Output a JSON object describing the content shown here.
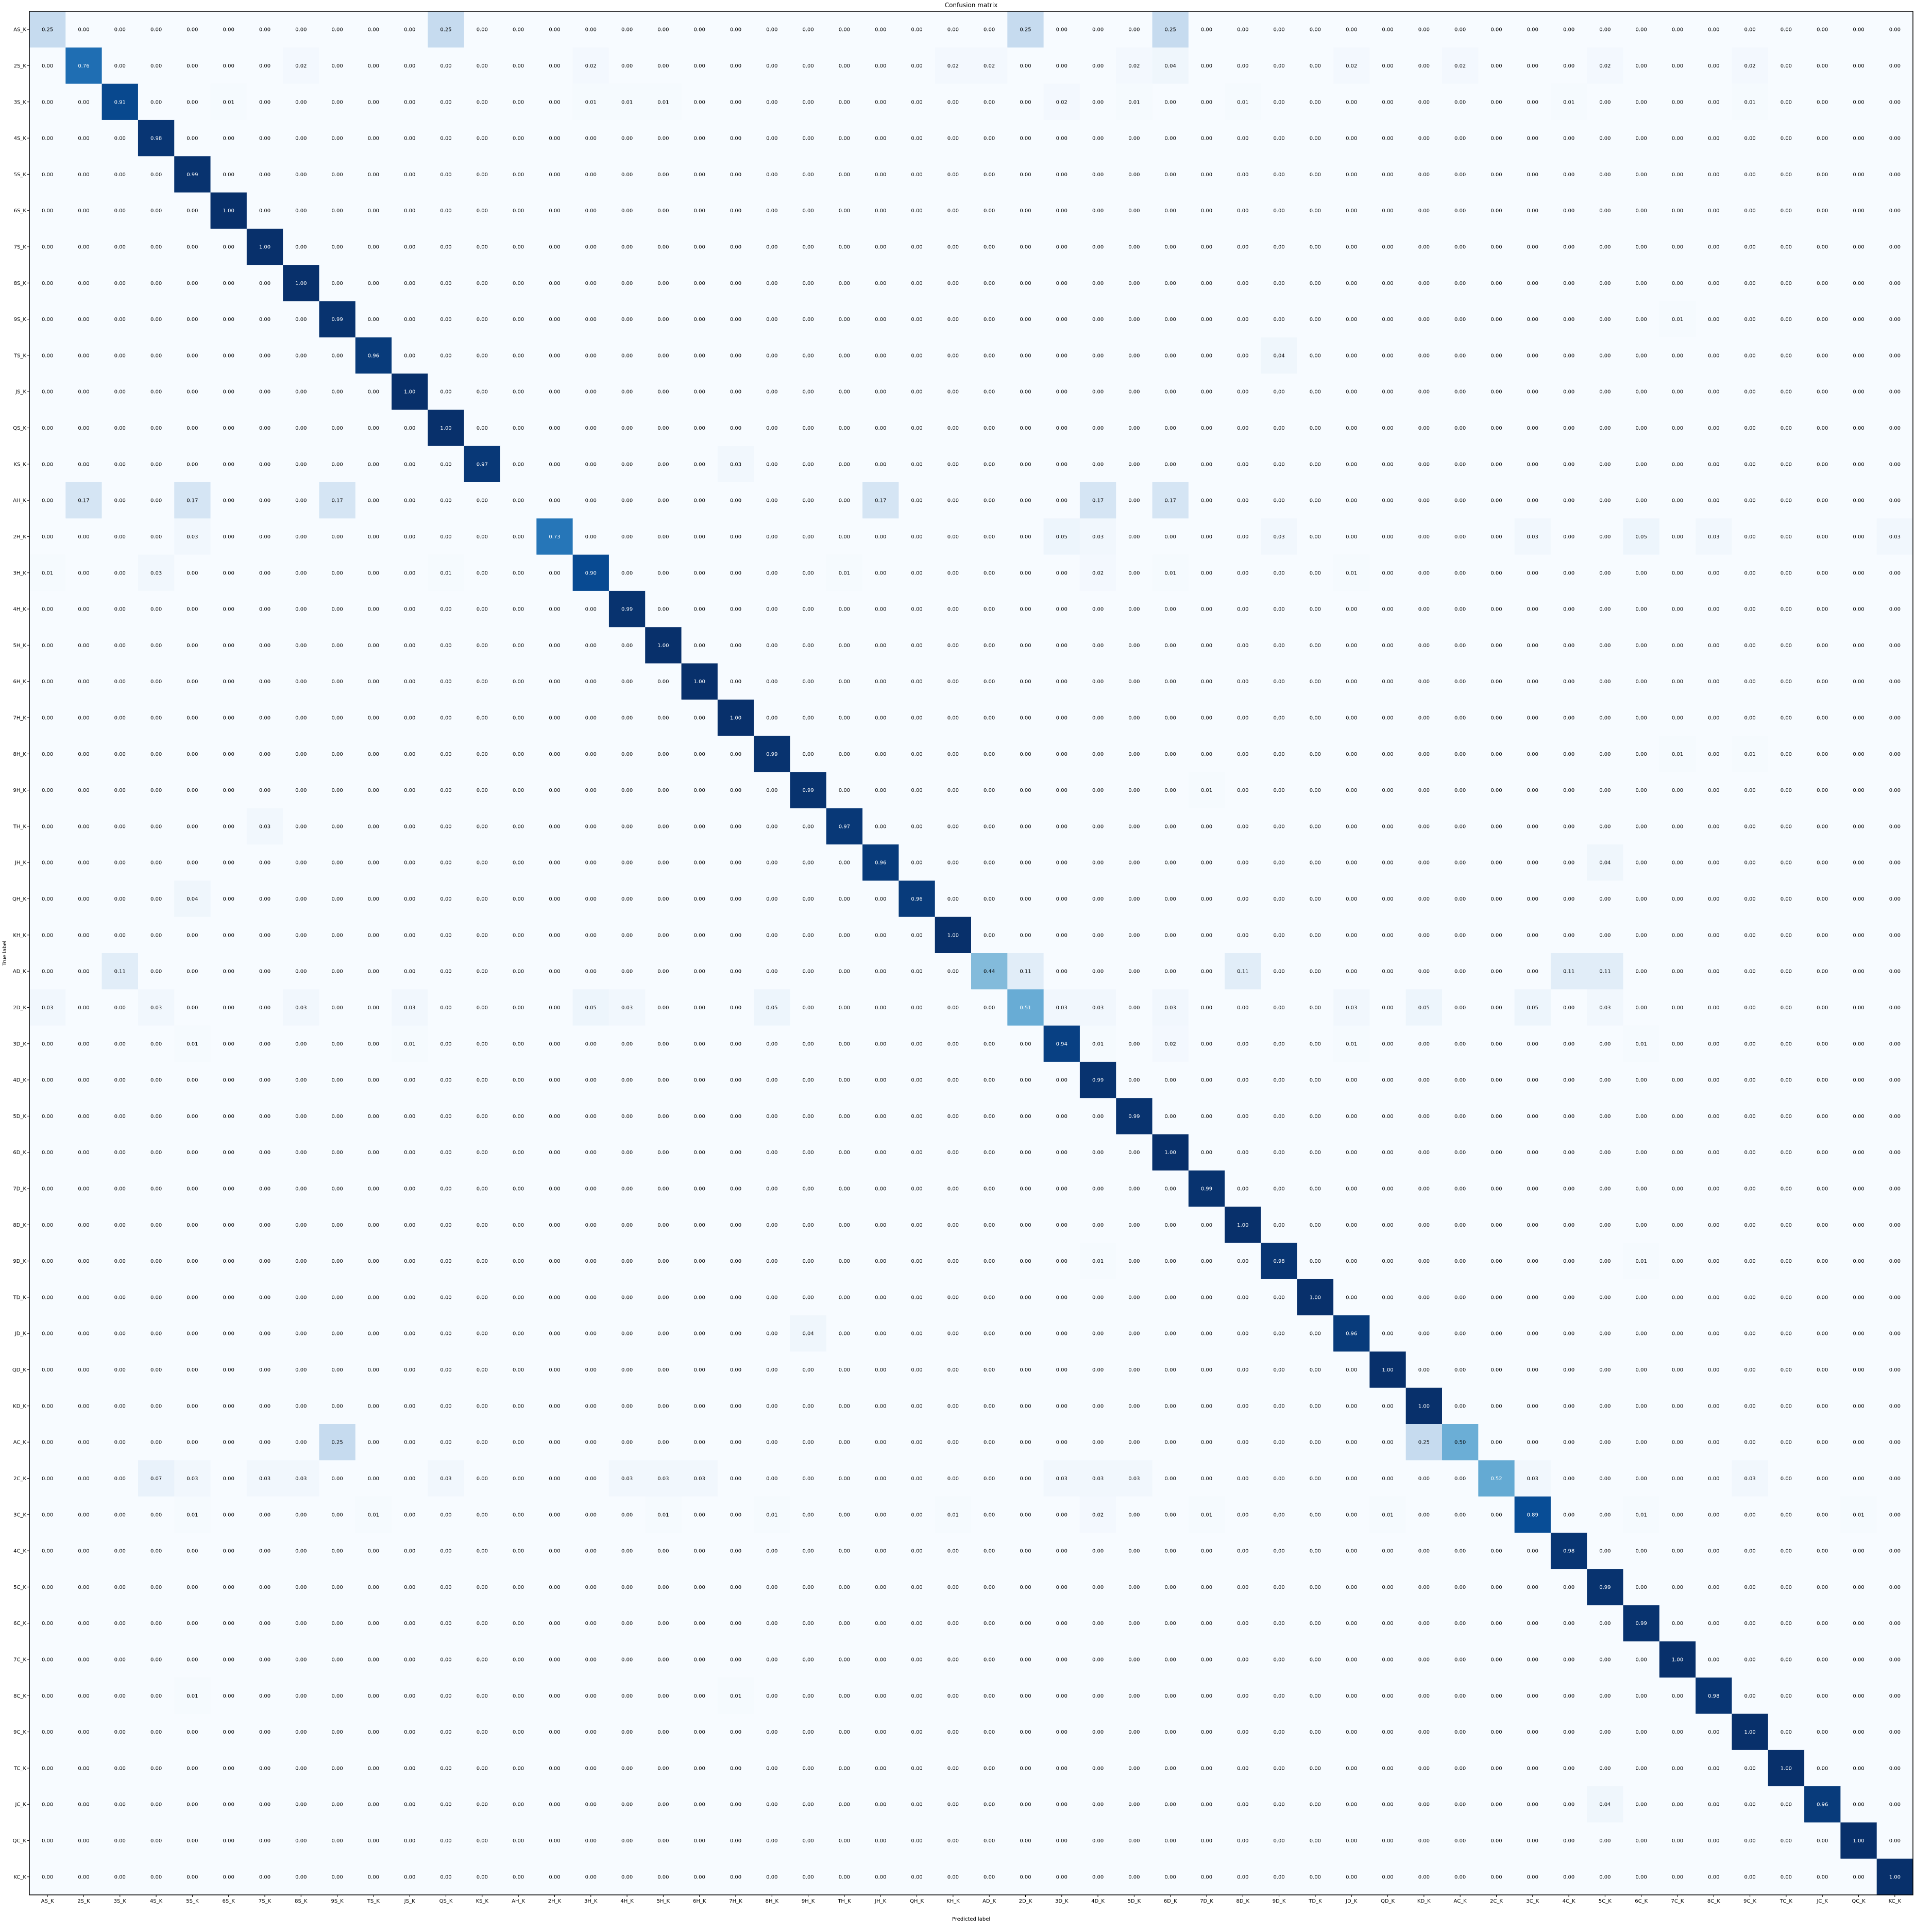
{
  "chart_data": {
    "type": "heatmap",
    "title": "Confusion matrix",
    "xlabel": "Predicted label",
    "ylabel": "True label",
    "colormap": "Blues",
    "value_format": "2 decimals",
    "value_range": [
      0,
      1
    ],
    "grid": false,
    "labels": [
      "AS_K",
      "2S_K",
      "3S_K",
      "4S_K",
      "5S_K",
      "6S_K",
      "7S_K",
      "8S_K",
      "9S_K",
      "TS_K",
      "JS_K",
      "QS_K",
      "KS_K",
      "AH_K",
      "2H_K",
      "3H_K",
      "4H_K",
      "5H_K",
      "6H_K",
      "7H_K",
      "8H_K",
      "9H_K",
      "TH_K",
      "JH_K",
      "QH_K",
      "KH_K",
      "AD_K",
      "2D_K",
      "3D_K",
      "4D_K",
      "5D_K",
      "6D_K",
      "7D_K",
      "8D_K",
      "9D_K",
      "TD_K",
      "JD_K",
      "QD_K",
      "KD_K",
      "AC_K",
      "2C_K",
      "3C_K",
      "4C_K",
      "5C_K",
      "6C_K",
      "7C_K",
      "8C_K",
      "9C_K",
      "TC_K",
      "JC_K",
      "QC_K",
      "KC_K"
    ],
    "diagonal": [
      0.25,
      0.76,
      0.91,
      0.98,
      0.99,
      1.0,
      1.0,
      1.0,
      0.99,
      0.96,
      1.0,
      1.0,
      0.97,
      0.0,
      0.73,
      0.9,
      0.99,
      1.0,
      1.0,
      1.0,
      0.99,
      0.99,
      0.97,
      0.96,
      0.96,
      1.0,
      0.44,
      0.51,
      0.94,
      0.99,
      0.99,
      1.0,
      0.99,
      1.0,
      0.98,
      1.0,
      0.96,
      1.0,
      1.0,
      0.5,
      0.52,
      0.89,
      0.98,
      0.99,
      0.99,
      1.0,
      0.98,
      1.0,
      1.0,
      0.96,
      1.0,
      1.0
    ],
    "off_diagonal": [
      [
        0,
        11,
        0.25
      ],
      [
        0,
        27,
        0.25
      ],
      [
        0,
        31,
        0.25
      ],
      [
        1,
        7,
        0.02
      ],
      [
        1,
        15,
        0.02
      ],
      [
        1,
        25,
        0.02
      ],
      [
        1,
        26,
        0.02
      ],
      [
        1,
        30,
        0.02
      ],
      [
        1,
        31,
        0.04
      ],
      [
        1,
        36,
        0.02
      ],
      [
        1,
        39,
        0.02
      ],
      [
        1,
        43,
        0.02
      ],
      [
        1,
        47,
        0.02
      ],
      [
        2,
        5,
        0.01
      ],
      [
        2,
        15,
        0.01
      ],
      [
        2,
        16,
        0.01
      ],
      [
        2,
        17,
        0.01
      ],
      [
        2,
        28,
        0.02
      ],
      [
        2,
        30,
        0.01
      ],
      [
        2,
        33,
        0.01
      ],
      [
        2,
        42,
        0.01
      ],
      [
        2,
        47,
        0.01
      ],
      [
        8,
        45,
        0.01
      ],
      [
        9,
        34,
        0.04
      ],
      [
        12,
        19,
        0.03
      ],
      [
        13,
        1,
        0.17
      ],
      [
        13,
        4,
        0.17
      ],
      [
        13,
        8,
        0.17
      ],
      [
        13,
        23,
        0.17
      ],
      [
        13,
        29,
        0.17
      ],
      [
        13,
        31,
        0.17
      ],
      [
        14,
        4,
        0.03
      ],
      [
        14,
        28,
        0.05
      ],
      [
        14,
        29,
        0.03
      ],
      [
        14,
        34,
        0.03
      ],
      [
        14,
        41,
        0.03
      ],
      [
        14,
        44,
        0.05
      ],
      [
        14,
        46,
        0.03
      ],
      [
        14,
        51,
        0.03
      ],
      [
        15,
        0,
        0.01
      ],
      [
        15,
        3,
        0.03
      ],
      [
        15,
        11,
        0.01
      ],
      [
        15,
        22,
        0.01
      ],
      [
        15,
        29,
        0.02
      ],
      [
        15,
        31,
        0.01
      ],
      [
        15,
        36,
        0.01
      ],
      [
        20,
        45,
        0.01
      ],
      [
        20,
        47,
        0.01
      ],
      [
        21,
        32,
        0.01
      ],
      [
        22,
        6,
        0.03
      ],
      [
        23,
        43,
        0.04
      ],
      [
        24,
        4,
        0.04
      ],
      [
        26,
        2,
        0.11
      ],
      [
        26,
        27,
        0.11
      ],
      [
        26,
        33,
        0.11
      ],
      [
        26,
        42,
        0.11
      ],
      [
        26,
        43,
        0.11
      ],
      [
        27,
        0,
        0.03
      ],
      [
        27,
        3,
        0.03
      ],
      [
        27,
        7,
        0.03
      ],
      [
        27,
        10,
        0.03
      ],
      [
        27,
        15,
        0.05
      ],
      [
        27,
        16,
        0.03
      ],
      [
        27,
        20,
        0.05
      ],
      [
        27,
        28,
        0.03
      ],
      [
        27,
        29,
        0.03
      ],
      [
        27,
        31,
        0.03
      ],
      [
        27,
        36,
        0.03
      ],
      [
        27,
        38,
        0.05
      ],
      [
        27,
        41,
        0.05
      ],
      [
        27,
        43,
        0.03
      ],
      [
        28,
        4,
        0.01
      ],
      [
        28,
        10,
        0.01
      ],
      [
        28,
        29,
        0.01
      ],
      [
        28,
        31,
        0.02
      ],
      [
        28,
        36,
        0.01
      ],
      [
        28,
        44,
        0.01
      ],
      [
        34,
        29,
        0.01
      ],
      [
        34,
        44,
        0.01
      ],
      [
        36,
        21,
        0.04
      ],
      [
        39,
        8,
        0.25
      ],
      [
        39,
        38,
        0.25
      ],
      [
        40,
        3,
        0.07
      ],
      [
        40,
        4,
        0.03
      ],
      [
        40,
        6,
        0.03
      ],
      [
        40,
        7,
        0.03
      ],
      [
        40,
        11,
        0.03
      ],
      [
        40,
        16,
        0.03
      ],
      [
        40,
        17,
        0.03
      ],
      [
        40,
        18,
        0.03
      ],
      [
        40,
        28,
        0.03
      ],
      [
        40,
        29,
        0.03
      ],
      [
        40,
        30,
        0.03
      ],
      [
        40,
        41,
        0.03
      ],
      [
        40,
        47,
        0.03
      ],
      [
        41,
        4,
        0.01
      ],
      [
        41,
        9,
        0.01
      ],
      [
        41,
        17,
        0.01
      ],
      [
        41,
        20,
        0.01
      ],
      [
        41,
        25,
        0.01
      ],
      [
        41,
        29,
        0.02
      ],
      [
        41,
        32,
        0.01
      ],
      [
        41,
        37,
        0.01
      ],
      [
        41,
        44,
        0.01
      ],
      [
        41,
        50,
        0.01
      ],
      [
        46,
        4,
        0.01
      ],
      [
        46,
        19,
        0.01
      ],
      [
        49,
        43,
        0.04
      ]
    ]
  }
}
